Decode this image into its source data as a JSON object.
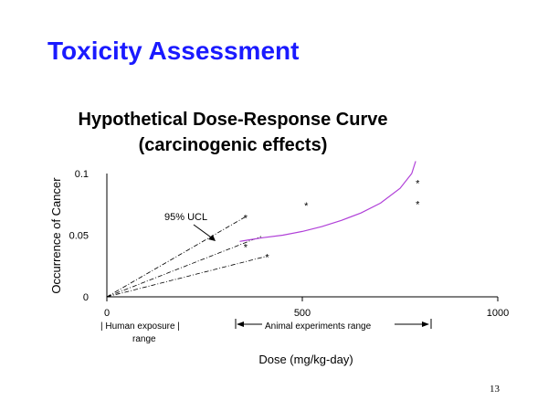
{
  "slide": {
    "title": "Toxicity Assessment",
    "page_number": "13"
  },
  "colors": {
    "title": "#1a1aff",
    "curve": "#b040d8",
    "axis": "#000000",
    "text": "#000000"
  },
  "chart_data": {
    "type": "line",
    "title": "Hypothetical Dose-Response Curve",
    "subtitle": "(carcinogenic effects)",
    "xlabel": "Dose (mg/kg-day)",
    "ylabel": "Occurrence of Cancer",
    "xlim": [
      0,
      1000
    ],
    "ylim": [
      0,
      0.12
    ],
    "x_ticks": [
      {
        "value": 0,
        "label": "0"
      },
      {
        "value": 500,
        "label": "500"
      },
      {
        "value": 1000,
        "label": "1000"
      }
    ],
    "y_ticks": [
      {
        "value": 0,
        "label": "0"
      },
      {
        "value": 0.05,
        "label": "0.05"
      },
      {
        "value": 0.1,
        "label": "0.1"
      }
    ],
    "grid": false,
    "dose_response_curve": {
      "x": [
        340,
        360,
        400,
        450,
        500,
        550,
        600,
        650,
        700,
        750,
        780,
        790
      ],
      "y": [
        0.045,
        0.046,
        0.048,
        0.05,
        0.053,
        0.057,
        0.062,
        0.068,
        0.076,
        0.088,
        0.1,
        0.11
      ]
    },
    "observations": [
      {
        "x": 510,
        "y": 0.075,
        "label": "*"
      },
      {
        "x": 795,
        "y": 0.093,
        "label": "*"
      },
      {
        "x": 795,
        "y": 0.076,
        "label": "*"
      },
      {
        "x": 355,
        "y": 0.065,
        "label": "*"
      },
      {
        "x": 355,
        "y": 0.041,
        "label": "*"
      },
      {
        "x": 410,
        "y": 0.033,
        "label": "*"
      }
    ],
    "extrapolation_lines": [
      {
        "from": [
          0,
          0
        ],
        "to": [
          355,
          0.065
        ],
        "style": "dash-dot",
        "label": "95% UCL"
      },
      {
        "from": [
          0,
          0
        ],
        "to": [
          395,
          0.049
        ],
        "style": "dash-dot"
      },
      {
        "from": [
          0,
          0
        ],
        "to": [
          410,
          0.033
        ],
        "style": "dash-dot"
      }
    ],
    "annotations": {
      "ucl_label": "95% UCL",
      "human_range_label": "| Human exposure   |",
      "human_range_label2": "range",
      "animal_range_label": "Animal experiments range"
    }
  }
}
